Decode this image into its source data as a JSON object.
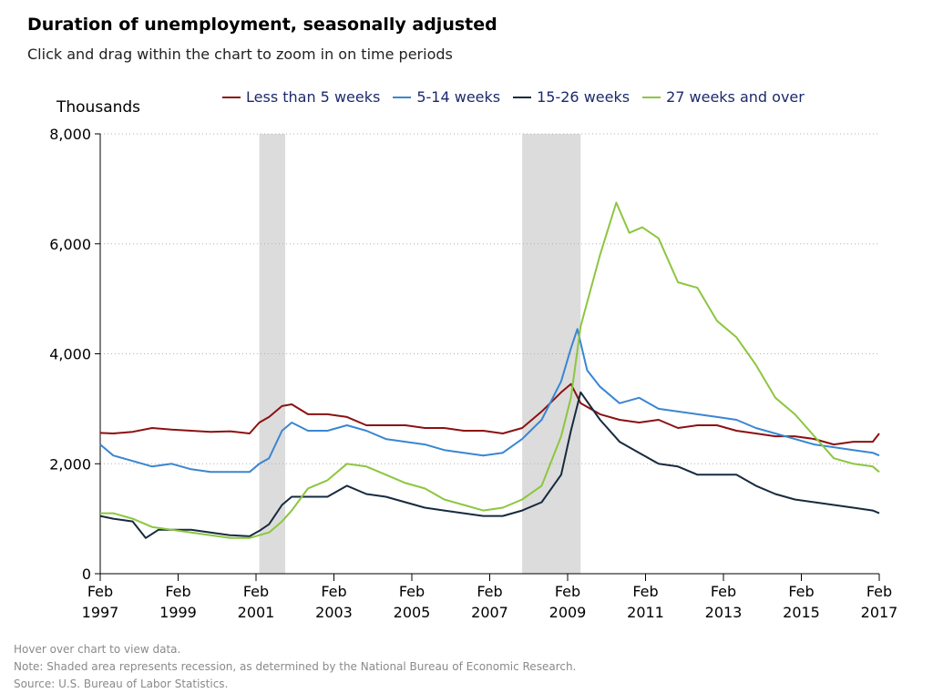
{
  "title": "Duration of unemployment, seasonally adjusted",
  "subtitle": "Click and drag within the chart to zoom in on time periods",
  "legend": [
    {
      "name": "Less than 5 weeks",
      "color": "#8b1111"
    },
    {
      "name": "5-14 weeks",
      "color": "#3a86d2"
    },
    {
      "name": "15-26 weeks",
      "color": "#172a3f"
    },
    {
      "name": "27 weeks and over",
      "color": "#8cc63f"
    }
  ],
  "footnotes": [
    "Hover over chart to view data.",
    "Note: Shaded area represents recession, as determined by the National Bureau of Economic Research.",
    "Source: U.S. Bureau of Labor Statistics."
  ],
  "chart_data": {
    "type": "line",
    "ylabel": "Thousands",
    "ylim": [
      0,
      8000
    ],
    "yticks": [
      "0",
      "2,000",
      "4,000",
      "6,000",
      "8,000"
    ],
    "xlim": [
      "1997-02",
      "2017-02"
    ],
    "xticks": [
      {
        "date": "1997-02",
        "label": [
          "Feb",
          "1997"
        ]
      },
      {
        "date": "1999-02",
        "label": [
          "Feb",
          "1999"
        ]
      },
      {
        "date": "2001-02",
        "label": [
          "Feb",
          "2001"
        ]
      },
      {
        "date": "2003-02",
        "label": [
          "Feb",
          "2003"
        ]
      },
      {
        "date": "2005-02",
        "label": [
          "Feb",
          "2005"
        ]
      },
      {
        "date": "2007-02",
        "label": [
          "Feb",
          "2007"
        ]
      },
      {
        "date": "2009-02",
        "label": [
          "Feb",
          "2009"
        ]
      },
      {
        "date": "2011-02",
        "label": [
          "Feb",
          "2011"
        ]
      },
      {
        "date": "2013-02",
        "label": [
          "Feb",
          "2013"
        ]
      },
      {
        "date": "2015-02",
        "label": [
          "Feb",
          "2015"
        ]
      },
      {
        "date": "2017-02",
        "label": [
          "Feb",
          "2017"
        ]
      }
    ],
    "recessions": [
      {
        "start": "2001-03",
        "end": "2001-11"
      },
      {
        "start": "2007-12",
        "end": "2009-06"
      }
    ],
    "grid": "horizontal dotted",
    "legend_position": "top",
    "series": [
      {
        "name": "Less than 5 weeks",
        "color": "#8b1111",
        "points": [
          [
            "1997-02",
            2560
          ],
          [
            "1997-06",
            2550
          ],
          [
            "1997-12",
            2580
          ],
          [
            "1998-06",
            2650
          ],
          [
            "1998-12",
            2620
          ],
          [
            "1999-06",
            2600
          ],
          [
            "1999-12",
            2580
          ],
          [
            "2000-06",
            2590
          ],
          [
            "2000-12",
            2550
          ],
          [
            "2001-03",
            2750
          ],
          [
            "2001-06",
            2850
          ],
          [
            "2001-10",
            3050
          ],
          [
            "2002-01",
            3080
          ],
          [
            "2002-06",
            2900
          ],
          [
            "2002-12",
            2900
          ],
          [
            "2003-06",
            2850
          ],
          [
            "2003-12",
            2700
          ],
          [
            "2004-06",
            2700
          ],
          [
            "2004-12",
            2700
          ],
          [
            "2005-06",
            2650
          ],
          [
            "2005-12",
            2650
          ],
          [
            "2006-06",
            2600
          ],
          [
            "2006-12",
            2600
          ],
          [
            "2007-06",
            2550
          ],
          [
            "2007-12",
            2650
          ],
          [
            "2008-06",
            2950
          ],
          [
            "2008-12",
            3300
          ],
          [
            "2009-03",
            3450
          ],
          [
            "2009-06",
            3100
          ],
          [
            "2009-12",
            2900
          ],
          [
            "2010-06",
            2800
          ],
          [
            "2010-12",
            2750
          ],
          [
            "2011-06",
            2800
          ],
          [
            "2011-12",
            2650
          ],
          [
            "2012-06",
            2700
          ],
          [
            "2012-12",
            2700
          ],
          [
            "2013-06",
            2600
          ],
          [
            "2013-12",
            2550
          ],
          [
            "2014-06",
            2500
          ],
          [
            "2014-12",
            2500
          ],
          [
            "2015-06",
            2450
          ],
          [
            "2015-12",
            2350
          ],
          [
            "2016-06",
            2400
          ],
          [
            "2016-12",
            2400
          ],
          [
            "2017-02",
            2550
          ]
        ]
      },
      {
        "name": "5-14 weeks",
        "color": "#3a86d2",
        "points": [
          [
            "1997-02",
            2350
          ],
          [
            "1997-06",
            2150
          ],
          [
            "1997-12",
            2050
          ],
          [
            "1998-06",
            1950
          ],
          [
            "1998-12",
            2000
          ],
          [
            "1999-06",
            1900
          ],
          [
            "1999-12",
            1850
          ],
          [
            "2000-06",
            1850
          ],
          [
            "2000-12",
            1850
          ],
          [
            "2001-03",
            2000
          ],
          [
            "2001-06",
            2100
          ],
          [
            "2001-10",
            2600
          ],
          [
            "2002-01",
            2750
          ],
          [
            "2002-06",
            2600
          ],
          [
            "2002-12",
            2600
          ],
          [
            "2003-06",
            2700
          ],
          [
            "2003-12",
            2600
          ],
          [
            "2004-06",
            2450
          ],
          [
            "2004-12",
            2400
          ],
          [
            "2005-06",
            2350
          ],
          [
            "2005-12",
            2250
          ],
          [
            "2006-06",
            2200
          ],
          [
            "2006-12",
            2150
          ],
          [
            "2007-06",
            2200
          ],
          [
            "2007-12",
            2450
          ],
          [
            "2008-06",
            2800
          ],
          [
            "2008-12",
            3500
          ],
          [
            "2009-03",
            4100
          ],
          [
            "2009-05",
            4450
          ],
          [
            "2009-08",
            3700
          ],
          [
            "2009-12",
            3400
          ],
          [
            "2010-06",
            3100
          ],
          [
            "2010-12",
            3200
          ],
          [
            "2011-06",
            3000
          ],
          [
            "2011-12",
            2950
          ],
          [
            "2012-06",
            2900
          ],
          [
            "2012-12",
            2850
          ],
          [
            "2013-06",
            2800
          ],
          [
            "2013-12",
            2650
          ],
          [
            "2014-06",
            2550
          ],
          [
            "2014-12",
            2450
          ],
          [
            "2015-06",
            2350
          ],
          [
            "2015-12",
            2300
          ],
          [
            "2016-06",
            2250
          ],
          [
            "2016-12",
            2200
          ],
          [
            "2017-02",
            2150
          ]
        ]
      },
      {
        "name": "15-26 weeks",
        "color": "#172a3f",
        "points": [
          [
            "1997-02",
            1050
          ],
          [
            "1997-06",
            1000
          ],
          [
            "1997-12",
            950
          ],
          [
            "1998-04",
            650
          ],
          [
            "1998-08",
            800
          ],
          [
            "1998-12",
            800
          ],
          [
            "1999-06",
            800
          ],
          [
            "1999-12",
            750
          ],
          [
            "2000-06",
            700
          ],
          [
            "2000-12",
            680
          ],
          [
            "2001-03",
            780
          ],
          [
            "2001-06",
            900
          ],
          [
            "2001-10",
            1250
          ],
          [
            "2002-01",
            1400
          ],
          [
            "2002-06",
            1400
          ],
          [
            "2002-12",
            1400
          ],
          [
            "2003-06",
            1600
          ],
          [
            "2003-12",
            1450
          ],
          [
            "2004-06",
            1400
          ],
          [
            "2004-12",
            1300
          ],
          [
            "2005-06",
            1200
          ],
          [
            "2005-12",
            1150
          ],
          [
            "2006-06",
            1100
          ],
          [
            "2006-12",
            1050
          ],
          [
            "2007-06",
            1050
          ],
          [
            "2007-12",
            1150
          ],
          [
            "2008-06",
            1300
          ],
          [
            "2008-12",
            1800
          ],
          [
            "2009-03",
            2600
          ],
          [
            "2009-06",
            3300
          ],
          [
            "2009-12",
            2800
          ],
          [
            "2010-06",
            2400
          ],
          [
            "2010-12",
            2200
          ],
          [
            "2011-06",
            2000
          ],
          [
            "2011-12",
            1950
          ],
          [
            "2012-06",
            1800
          ],
          [
            "2012-12",
            1800
          ],
          [
            "2013-06",
            1800
          ],
          [
            "2013-12",
            1600
          ],
          [
            "2014-06",
            1450
          ],
          [
            "2014-12",
            1350
          ],
          [
            "2015-06",
            1300
          ],
          [
            "2015-12",
            1250
          ],
          [
            "2016-06",
            1200
          ],
          [
            "2016-12",
            1150
          ],
          [
            "2017-02",
            1100
          ]
        ]
      },
      {
        "name": "27 weeks and over",
        "color": "#8cc63f",
        "points": [
          [
            "1997-02",
            1100
          ],
          [
            "1997-06",
            1100
          ],
          [
            "1997-12",
            1000
          ],
          [
            "1998-06",
            850
          ],
          [
            "1998-12",
            800
          ],
          [
            "1999-06",
            750
          ],
          [
            "1999-12",
            700
          ],
          [
            "2000-06",
            650
          ],
          [
            "2000-12",
            650
          ],
          [
            "2001-03",
            700
          ],
          [
            "2001-06",
            750
          ],
          [
            "2001-10",
            950
          ],
          [
            "2002-01",
            1150
          ],
          [
            "2002-06",
            1550
          ],
          [
            "2002-12",
            1700
          ],
          [
            "2003-06",
            2000
          ],
          [
            "2003-12",
            1950
          ],
          [
            "2004-06",
            1800
          ],
          [
            "2004-12",
            1650
          ],
          [
            "2005-06",
            1550
          ],
          [
            "2005-12",
            1350
          ],
          [
            "2006-06",
            1250
          ],
          [
            "2006-12",
            1150
          ],
          [
            "2007-06",
            1200
          ],
          [
            "2007-12",
            1350
          ],
          [
            "2008-06",
            1600
          ],
          [
            "2008-12",
            2500
          ],
          [
            "2009-03",
            3200
          ],
          [
            "2009-06",
            4500
          ],
          [
            "2009-12",
            5800
          ],
          [
            "2010-05",
            6750
          ],
          [
            "2010-09",
            6200
          ],
          [
            "2011-01",
            6300
          ],
          [
            "2011-06",
            6100
          ],
          [
            "2011-12",
            5300
          ],
          [
            "2012-06",
            5200
          ],
          [
            "2012-12",
            4600
          ],
          [
            "2013-06",
            4300
          ],
          [
            "2013-12",
            3800
          ],
          [
            "2014-06",
            3200
          ],
          [
            "2014-12",
            2900
          ],
          [
            "2015-06",
            2500
          ],
          [
            "2015-12",
            2100
          ],
          [
            "2016-06",
            2000
          ],
          [
            "2016-12",
            1950
          ],
          [
            "2017-02",
            1850
          ]
        ]
      }
    ]
  }
}
